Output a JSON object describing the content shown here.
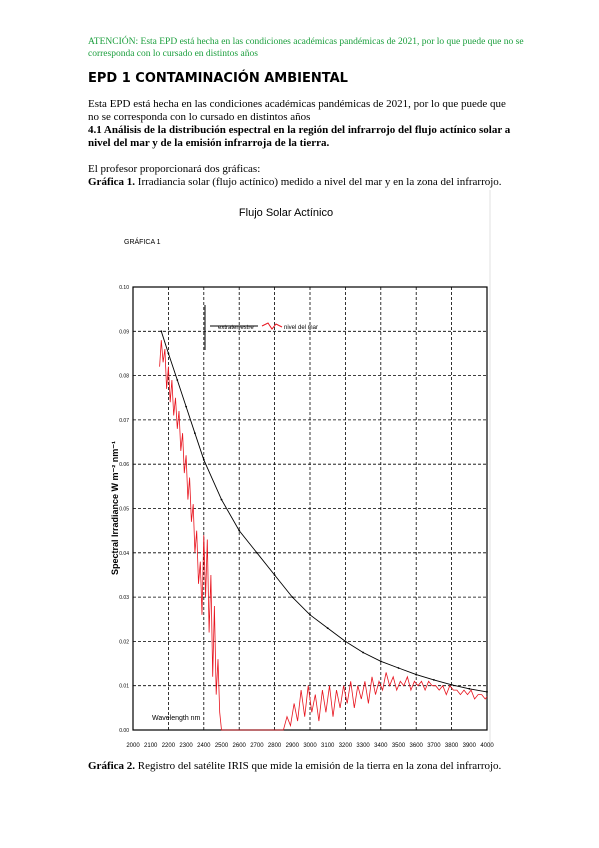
{
  "notice": "ATENCIÓN: Esta EPD está hecha en las condiciones académicas pandémicas de 2021, por lo que puede que no se corresponda con lo cursado en distintos años",
  "title": "EPD 1 CONTAMINACIÓN AMBIENTAL",
  "paragraph": "Esta EPD está hecha en las condiciones académicas pandémicas de 2021, por lo que puede que no se corresponda con lo cursado en distintos años",
  "section_heading": "4.1 Análisis de la distribución espectral en la región del infrarrojo del flujo actínico solar a nivel del mar y de la emisión infrarroja de la tierra.",
  "intro": "El profesor proporcionará dos gráficas:",
  "caption1": {
    "label": "Gráfica 1.",
    "text": " Irradiancia solar (flujo actínico) medido a nivel del mar y en la zona del infrarrojo."
  },
  "caption2": {
    "label": "Gráfica 2.",
    "text": " Registro del satélite IRIS que mide la emisión de la tierra en la zona del infrarrojo."
  },
  "chart_data": {
    "type": "line",
    "title": "Flujo Solar Actínico",
    "subtitle": "GRÁFICA 1",
    "xlabel": "Wavelength nm",
    "ylabel": "Spectral Irradiance W m⁻² nm⁻¹",
    "xlim": [
      2000,
      4000
    ],
    "ylim": [
      0.0,
      0.1
    ],
    "x_ticks": [
      "2000",
      "2100",
      "2200",
      "2300",
      "2400",
      "2500",
      "2600",
      "2700",
      "2800",
      "2900",
      "3000",
      "3100",
      "3200",
      "3300",
      "3400",
      "3500",
      "3600",
      "3700",
      "3800",
      "3900",
      "4000"
    ],
    "y_ticks": [
      "0.00",
      "0.01",
      "0.02",
      "0.03",
      "0.04",
      "0.05",
      "0.06",
      "0.07",
      "0.08",
      "0.09",
      "0.10"
    ],
    "grid": true,
    "legend_position": "top-left",
    "series": [
      {
        "name": "extraterrestre",
        "color": "#000000",
        "x": [
          2160,
          2200,
          2250,
          2300,
          2350,
          2400,
          2500,
          2600,
          2700,
          2800,
          2900,
          3000,
          3100,
          3200,
          3300,
          3400,
          3500,
          3600,
          3700,
          3800,
          3900,
          4000
        ],
        "values": [
          0.09,
          0.085,
          0.079,
          0.073,
          0.067,
          0.061,
          0.052,
          0.045,
          0.04,
          0.035,
          0.03,
          0.026,
          0.023,
          0.02,
          0.0175,
          0.0155,
          0.014,
          0.0125,
          0.0113,
          0.0102,
          0.0093,
          0.0086
        ]
      },
      {
        "name": "nivel del mar",
        "color": "#e8141e",
        "x": [
          2150,
          2160,
          2170,
          2180,
          2190,
          2200,
          2210,
          2220,
          2230,
          2240,
          2250,
          2260,
          2270,
          2280,
          2290,
          2300,
          2310,
          2320,
          2330,
          2340,
          2350,
          2360,
          2370,
          2380,
          2390,
          2400,
          2410,
          2420,
          2430,
          2440,
          2450,
          2460,
          2470,
          2480,
          2490,
          2500,
          2550,
          2600,
          2700,
          2800,
          2850,
          2870,
          2890,
          2910,
          2930,
          2950,
          2970,
          2990,
          3010,
          3030,
          3050,
          3070,
          3090,
          3110,
          3130,
          3150,
          3170,
          3190,
          3210,
          3230,
          3250,
          3270,
          3290,
          3310,
          3330,
          3350,
          3370,
          3390,
          3410,
          3430,
          3450,
          3470,
          3490,
          3510,
          3530,
          3550,
          3570,
          3590,
          3610,
          3630,
          3650,
          3670,
          3690,
          3710,
          3730,
          3750,
          3770,
          3790,
          3810,
          3830,
          3850,
          3870,
          3890,
          3910,
          3930,
          3950,
          3970,
          3990,
          4000
        ],
        "values": [
          0.082,
          0.088,
          0.083,
          0.086,
          0.077,
          0.082,
          0.074,
          0.079,
          0.071,
          0.075,
          0.068,
          0.072,
          0.063,
          0.067,
          0.058,
          0.062,
          0.052,
          0.057,
          0.047,
          0.051,
          0.04,
          0.045,
          0.033,
          0.038,
          0.026,
          0.044,
          0.03,
          0.043,
          0.022,
          0.035,
          0.012,
          0.028,
          0.008,
          0.016,
          0.004,
          0.0,
          0.0,
          0.0,
          0.0,
          0.0,
          0.0,
          0.003,
          0.001,
          0.006,
          0.002,
          0.009,
          0.003,
          0.01,
          0.004,
          0.008,
          0.002,
          0.009,
          0.004,
          0.01,
          0.003,
          0.009,
          0.005,
          0.01,
          0.006,
          0.011,
          0.005,
          0.01,
          0.007,
          0.011,
          0.006,
          0.012,
          0.008,
          0.011,
          0.009,
          0.013,
          0.01,
          0.012,
          0.009,
          0.011,
          0.01,
          0.012,
          0.009,
          0.011,
          0.01,
          0.011,
          0.009,
          0.011,
          0.01,
          0.01,
          0.009,
          0.01,
          0.008,
          0.01,
          0.009,
          0.009,
          0.008,
          0.009,
          0.008,
          0.009,
          0.007,
          0.008,
          0.008,
          0.007,
          0.0075
        ]
      }
    ]
  }
}
